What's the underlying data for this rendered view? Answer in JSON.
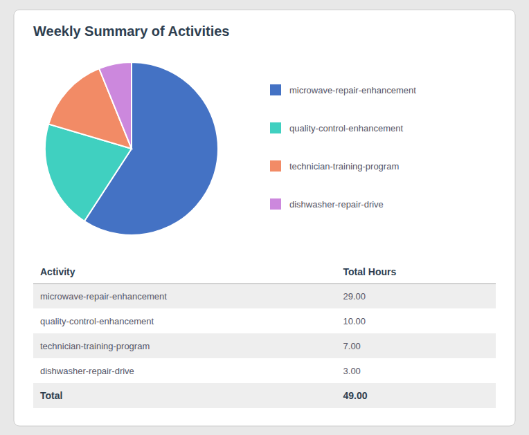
{
  "chart_data": [
    {
      "type": "pie",
      "title": "Weekly Summary of Activities",
      "categories": [
        "microwave-repair-enhancement",
        "quality-control-enhancement",
        "technician-training-program",
        "dishwasher-repair-drive"
      ],
      "values": [
        29.0,
        10.0,
        7.0,
        3.0
      ],
      "colors": [
        "#4472C4",
        "#40D0C0",
        "#F28B66",
        "#CC88DD"
      ],
      "legend": "right"
    },
    {
      "type": "table",
      "columns": [
        "Activity",
        "Total Hours"
      ],
      "categories": [
        "microwave-repair-enhancement",
        "quality-control-enhancement",
        "technician-training-program",
        "dishwasher-repair-drive"
      ],
      "values": [
        29.0,
        10.0,
        7.0,
        3.0
      ],
      "value_labels": [
        "29.00",
        "10.00",
        "7.00",
        "3.00"
      ],
      "total_label": "Total",
      "total": 49.0,
      "total_value_label": "49.00"
    }
  ]
}
